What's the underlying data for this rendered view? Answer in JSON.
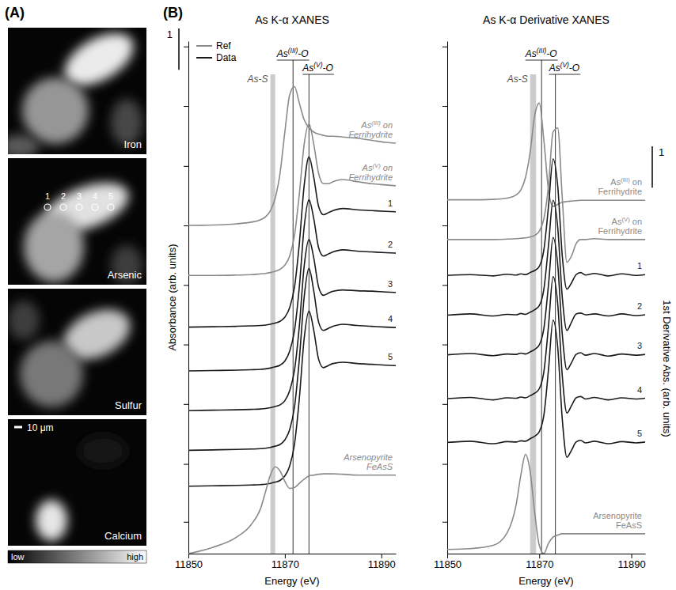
{
  "panel_a": {
    "label": "(A)",
    "maps": [
      {
        "label": "Iron"
      },
      {
        "label": "Arsenic"
      },
      {
        "label": "Sulfur"
      },
      {
        "label": "Calcium"
      }
    ],
    "points": [
      1,
      2,
      3,
      4,
      5
    ],
    "scale_bar": "10 μm",
    "colorbar": {
      "low": "low",
      "high": "high"
    }
  },
  "chart_data": [
    {
      "type": "line",
      "panel_label": "(B)",
      "title": "As K-α XANES",
      "x_label": "Energy (eV)",
      "y_label": "Absorbance (arb. units)",
      "x": [
        11850,
        11855,
        11860,
        11863,
        11865,
        11866,
        11867,
        11868,
        11869,
        11870,
        11871,
        11872,
        11873,
        11874,
        11875,
        11876,
        11877,
        11878,
        11879,
        11880,
        11882,
        11885,
        11888,
        11891,
        11893
      ],
      "xlim": [
        11850,
        11893
      ],
      "xticks": [
        11850,
        11870,
        11890
      ],
      "ylim": [
        0,
        12.4
      ],
      "yticks": [
        0.77,
        2.17,
        3.62,
        5.06,
        6.5,
        7.94,
        9.38,
        10.83,
        12.27
      ],
      "tick_labels": "x",
      "legend": "top-left",
      "scale_bar": 1,
      "groups": [
        {
          "name": "Ref",
          "color": "#8a8a8a"
        },
        {
          "name": "Data",
          "color": "#1a1a1a"
        }
      ],
      "annotations": [
        {
          "label": "As-S",
          "x_range": [
            11867,
            11868
          ]
        },
        {
          "label": "As(III)-O",
          "x": 11871.7
        },
        {
          "label": "As(V)-O",
          "x": 11875
        }
      ],
      "series": [
        {
          "name": "As(III) on Ferrihydrite",
          "group": "Ref",
          "color": "#8a8a8a",
          "values": [
            7.94,
            7.95,
            7.98,
            8.02,
            8.08,
            8.15,
            8.3,
            8.6,
            9.2,
            10.2,
            11.1,
            11.3,
            10.9,
            10.5,
            10.3,
            10.2,
            10.15,
            10.12,
            10.1,
            10.1,
            10.08,
            10.05,
            10.0,
            9.95,
            9.93
          ]
        },
        {
          "name": "As(V) on Ferrihydrite",
          "group": "Ref",
          "color": "#8a8a8a",
          "values": [
            6.73,
            6.73,
            6.74,
            6.75,
            6.77,
            6.78,
            6.8,
            6.83,
            6.88,
            6.98,
            7.2,
            7.7,
            8.7,
            9.9,
            10.4,
            9.9,
            9.2,
            8.95,
            8.95,
            9.0,
            9.05,
            9.0,
            8.95,
            8.92,
            8.9
          ]
        },
        {
          "name": "1",
          "group": "Data",
          "color": "#1a1a1a",
          "values": [
            5.48,
            5.49,
            5.5,
            5.51,
            5.52,
            5.53,
            5.55,
            5.58,
            5.62,
            5.72,
            5.95,
            6.45,
            7.5,
            8.9,
            9.6,
            9.1,
            8.4,
            8.2,
            8.25,
            8.3,
            8.35,
            8.32,
            8.3,
            8.28,
            8.27
          ]
        },
        {
          "name": "2",
          "group": "Data",
          "color": "#1a1a1a",
          "values": [
            4.42,
            4.43,
            4.44,
            4.45,
            4.46,
            4.47,
            4.49,
            4.52,
            4.56,
            4.66,
            4.9,
            5.4,
            6.45,
            7.9,
            8.56,
            8.1,
            7.4,
            7.2,
            7.25,
            7.3,
            7.35,
            7.32,
            7.3,
            7.28,
            7.27
          ]
        },
        {
          "name": "3",
          "group": "Data",
          "color": "#1a1a1a",
          "values": [
            3.46,
            3.47,
            3.48,
            3.49,
            3.5,
            3.51,
            3.53,
            3.56,
            3.6,
            3.7,
            3.94,
            4.44,
            5.5,
            6.95,
            7.6,
            7.15,
            6.45,
            6.25,
            6.3,
            6.35,
            6.38,
            6.36,
            6.35,
            6.33,
            6.32
          ]
        },
        {
          "name": "4",
          "group": "Data",
          "color": "#1a1a1a",
          "values": [
            2.5,
            2.51,
            2.52,
            2.53,
            2.54,
            2.55,
            2.57,
            2.6,
            2.64,
            2.75,
            3.0,
            3.55,
            4.7,
            6.2,
            6.9,
            6.35,
            5.6,
            5.4,
            5.45,
            5.5,
            5.55,
            5.52,
            5.5,
            5.48,
            5.47
          ]
        },
        {
          "name": "5",
          "group": "Data",
          "color": "#1a1a1a",
          "values": [
            1.63,
            1.64,
            1.65,
            1.66,
            1.67,
            1.68,
            1.7,
            1.73,
            1.77,
            1.88,
            2.12,
            2.65,
            3.75,
            5.2,
            5.87,
            5.4,
            4.7,
            4.5,
            4.55,
            4.6,
            4.63,
            4.6,
            4.58,
            4.56,
            4.55
          ]
        },
        {
          "name": "Arsenopyrite FeAsS",
          "group": "Ref",
          "color": "#8a8a8a",
          "values": [
            0.0,
            0.15,
            0.4,
            0.7,
            1.1,
            1.5,
            1.9,
            2.1,
            2.0,
            1.75,
            1.58,
            1.6,
            1.7,
            1.8,
            1.88,
            1.9,
            1.92,
            1.93,
            1.93,
            1.93,
            1.92,
            1.9,
            1.9,
            1.9,
            1.9
          ]
        }
      ]
    },
    {
      "type": "line",
      "title": "As K-α Derivative XANES",
      "x_label": "Energy (eV)",
      "y_label": "1st Derivative Abs. (arb. units)",
      "x": [
        11850,
        11855,
        11860,
        11863,
        11865,
        11866,
        11867,
        11868,
        11869,
        11870,
        11871,
        11872,
        11873,
        11874,
        11875,
        11876,
        11877,
        11878,
        11879,
        11880,
        11882,
        11885,
        11888,
        11891,
        11893
      ],
      "xlim": [
        11850,
        11893
      ],
      "xticks": [
        11850,
        11870,
        11890
      ],
      "ylim": [
        0,
        12.4
      ],
      "yticks": [
        0.77,
        2.17,
        3.62,
        5.06,
        6.5,
        7.94,
        9.38,
        10.83,
        12.27
      ],
      "tick_labels": "x",
      "scale_bar": 1,
      "annotations": [
        {
          "label": "As-S",
          "x_range": [
            11868,
            11869.3
          ]
        },
        {
          "label": "As(III)-O",
          "x": 11870.5
        },
        {
          "label": "As(V)-O",
          "x": 11873.5
        }
      ],
      "series": [
        {
          "name": "As(III) on Ferrihydrite",
          "group": "Ref",
          "color": "#8a8a8a",
          "values": [
            8.56,
            8.56,
            8.57,
            8.6,
            8.68,
            8.8,
            9.1,
            9.7,
            10.6,
            10.9,
            10.0,
            8.8,
            8.4,
            8.45,
            8.5,
            8.52,
            8.53,
            8.54,
            8.55,
            8.55,
            8.55,
            8.55,
            8.55,
            8.55,
            8.55
          ]
        },
        {
          "name": "As(V) on Ferrihydrite",
          "group": "Ref",
          "color": "#8a8a8a",
          "values": [
            7.6,
            7.6,
            7.6,
            7.61,
            7.62,
            7.63,
            7.64,
            7.66,
            7.7,
            7.8,
            8.1,
            8.9,
            10.2,
            10.3,
            8.6,
            7.05,
            7.2,
            7.5,
            7.6,
            7.6,
            7.62,
            7.6,
            7.6,
            7.6,
            7.6
          ]
        },
        {
          "name": "1",
          "group": "Data",
          "color": "#1a1a1a",
          "values": [
            6.73,
            6.75,
            6.72,
            6.76,
            6.74,
            6.77,
            6.75,
            6.8,
            6.85,
            6.95,
            7.35,
            8.4,
            9.55,
            8.9,
            7.2,
            6.4,
            6.55,
            6.75,
            6.8,
            6.74,
            6.78,
            6.72,
            6.77,
            6.73,
            6.75
          ]
        },
        {
          "name": "2",
          "group": "Data",
          "color": "#1a1a1a",
          "values": [
            5.77,
            5.8,
            5.75,
            5.79,
            5.78,
            5.81,
            5.79,
            5.84,
            5.9,
            6.0,
            6.4,
            7.45,
            8.55,
            7.9,
            6.2,
            5.4,
            5.6,
            5.8,
            5.82,
            5.78,
            5.8,
            5.75,
            5.8,
            5.76,
            5.78
          ]
        },
        {
          "name": "3",
          "group": "Data",
          "color": "#1a1a1a",
          "values": [
            4.81,
            4.84,
            4.79,
            4.83,
            4.82,
            4.85,
            4.83,
            4.88,
            4.94,
            5.05,
            5.45,
            6.5,
            7.65,
            7.0,
            5.3,
            4.45,
            4.62,
            4.82,
            4.86,
            4.8,
            4.84,
            4.78,
            4.83,
            4.8,
            4.82
          ]
        },
        {
          "name": "4",
          "group": "Data",
          "color": "#1a1a1a",
          "values": [
            3.75,
            3.78,
            3.72,
            3.77,
            3.76,
            3.79,
            3.77,
            3.82,
            3.88,
            3.99,
            4.4,
            5.5,
            6.7,
            6.05,
            4.3,
            3.4,
            3.58,
            3.77,
            3.8,
            3.74,
            3.78,
            3.72,
            3.77,
            3.74,
            3.76
          ]
        },
        {
          "name": "5",
          "group": "Data",
          "color": "#1a1a1a",
          "values": [
            2.69,
            2.72,
            2.66,
            2.71,
            2.7,
            2.73,
            2.72,
            2.78,
            2.84,
            2.95,
            3.35,
            4.45,
            5.65,
            5.0,
            3.25,
            2.33,
            2.5,
            2.7,
            2.74,
            2.68,
            2.72,
            2.66,
            2.71,
            2.68,
            2.7
          ]
        },
        {
          "name": "Arsenopyrite FeAsS",
          "group": "Ref",
          "color": "#8a8a8a",
          "values": [
            0.1,
            0.12,
            0.2,
            0.5,
            1.2,
            1.9,
            2.4,
            2.0,
            1.0,
            0.2,
            0.0,
            0.25,
            0.4,
            0.45,
            0.48,
            0.48,
            0.48,
            0.48,
            0.48,
            0.48,
            0.48,
            0.48,
            0.48,
            0.48,
            0.48
          ]
        }
      ]
    }
  ]
}
